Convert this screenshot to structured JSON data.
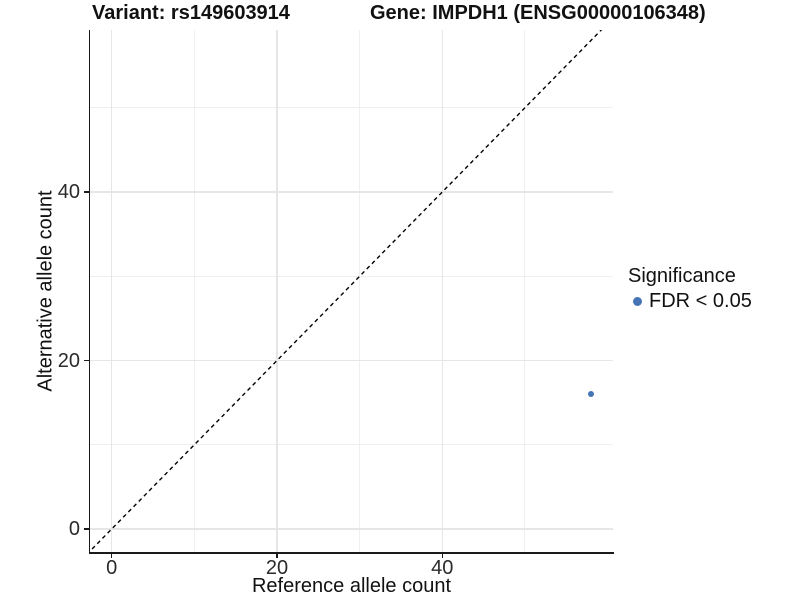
{
  "figure": {
    "title_left": "Variant: rs149603914",
    "title_right": "Gene: IMPDH1 (ENSG00000106348)"
  },
  "chart_data": {
    "type": "scatter",
    "title_left": "Variant: rs149603914",
    "title_right": "Gene: IMPDH1 (ENSG00000106348)",
    "xlabel": "Reference allele count",
    "ylabel": "Alternative allele count",
    "xlim": [
      -2.6,
      60.6
    ],
    "ylim": [
      -2.9,
      59.2
    ],
    "x_major_ticks": [
      0,
      20,
      40
    ],
    "x_minor_ticks": [
      10,
      30,
      50
    ],
    "y_major_ticks": [
      0,
      20,
      40
    ],
    "y_minor_ticks": [
      10,
      30,
      50
    ],
    "grid": "major+minor",
    "points": [
      {
        "x": 58,
        "y": 16,
        "series": "FDR < 0.05"
      }
    ],
    "identity_line": {
      "equation": "y = x",
      "style": "dashed",
      "color": "#000000"
    },
    "legend": {
      "title": "Significance",
      "position": "right",
      "entries": [
        {
          "label": "FDR < 0.05",
          "color": "#4575b4",
          "marker": "circle"
        }
      ]
    },
    "colors": {
      "point": "#4575b4",
      "grid_major": "#e6e6e6",
      "grid_minor": "#efefef",
      "axis": "#1a1a1a"
    }
  }
}
